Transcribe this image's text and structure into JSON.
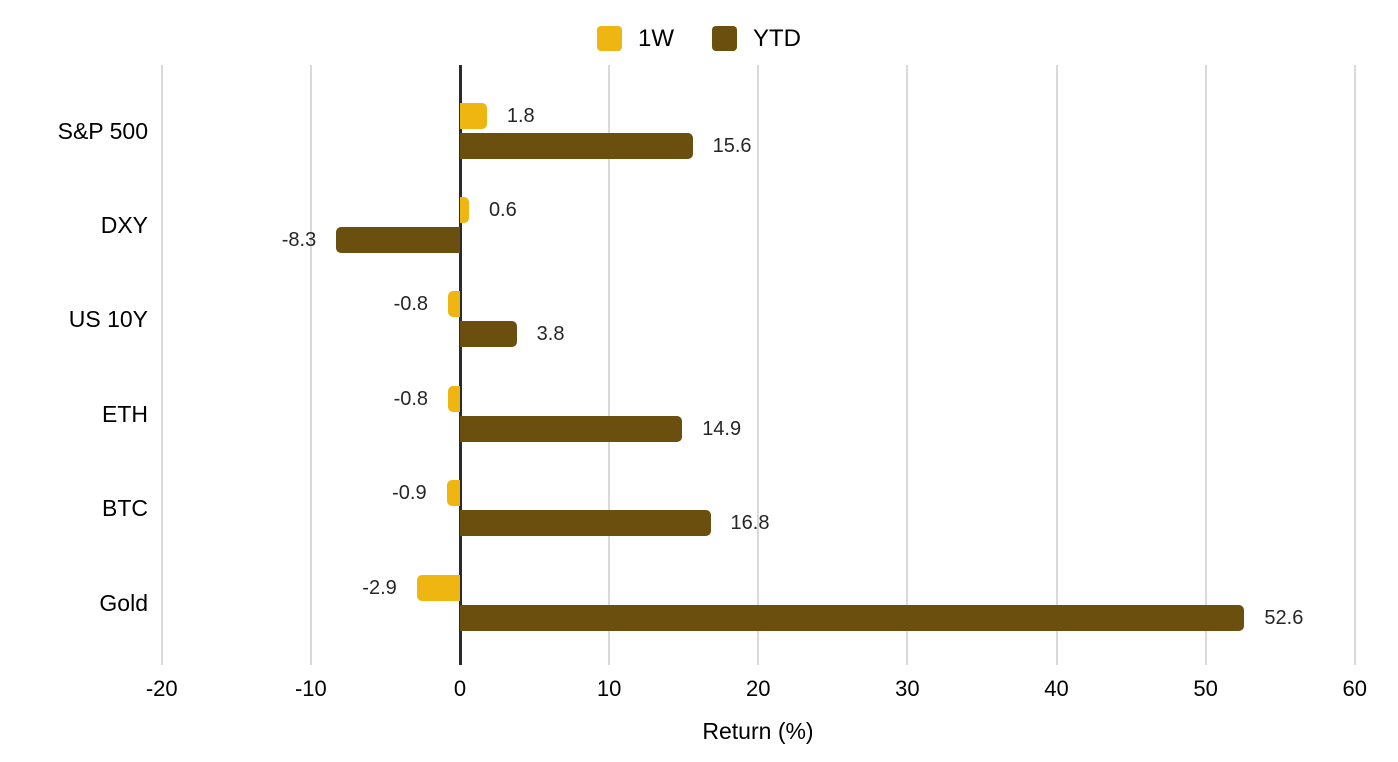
{
  "chart_data": {
    "type": "bar",
    "orientation": "horizontal",
    "title": "",
    "xlabel": "Return (%)",
    "ylabel": "",
    "categories": [
      "S&P 500",
      "DXY",
      "US 10Y",
      "ETH",
      "BTC",
      "Gold"
    ],
    "series": [
      {
        "name": "1W",
        "color": "#EFB511",
        "values": [
          1.8,
          0.6,
          -0.8,
          -0.8,
          -0.9,
          -2.9
        ]
      },
      {
        "name": "YTD",
        "color": "#6B4F0E",
        "values": [
          15.6,
          -8.3,
          3.8,
          14.9,
          16.8,
          52.6
        ]
      }
    ],
    "xlim": [
      -20,
      60
    ],
    "xticks": [
      -20,
      -10,
      0,
      10,
      20,
      30,
      40,
      50,
      60
    ],
    "grid": true,
    "legend_position": "top",
    "value_labels": "outside-bar-end",
    "colors": {
      "gridline": "#dadada",
      "zero_axis": "#2b2b2b",
      "text": "#000000",
      "value_label_text": "#262626",
      "background": "#ffffff"
    }
  }
}
